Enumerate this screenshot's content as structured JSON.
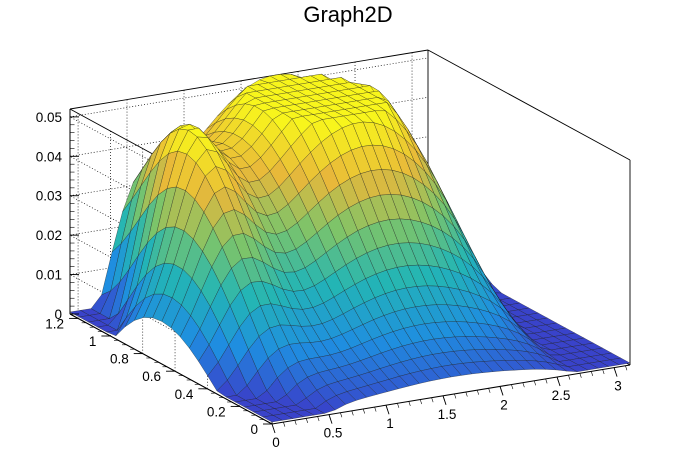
{
  "chart_data": {
    "type": "surface",
    "title": "Graph2D",
    "xlabel": "",
    "ylabel": "",
    "zlabel": "",
    "x_range": [
      0,
      3.14
    ],
    "y_range": [
      0,
      1.25
    ],
    "z_range": [
      0,
      0.052
    ],
    "x_ticks": [
      "0",
      "0.5",
      "1",
      "1.5",
      "2",
      "2.5",
      "3"
    ],
    "y_ticks": [
      "0",
      "0.2",
      "0.4",
      "0.6",
      "0.8",
      "1",
      "1.2"
    ],
    "z_ticks": [
      "0",
      "0.01",
      "0.02",
      "0.03",
      "0.04",
      "0.05"
    ],
    "x_tick_values": [
      0,
      0.5,
      1,
      1.5,
      2,
      2.5,
      3
    ],
    "y_tick_values": [
      0,
      0.2,
      0.4,
      0.6,
      0.8,
      1.0,
      1.2
    ],
    "z_tick_values": [
      0,
      0.01,
      0.02,
      0.03,
      0.04,
      0.05
    ],
    "grid": true,
    "colormap": "parula",
    "colors": [
      "#3a3fc9",
      "#1f8ee0",
      "#23b5b5",
      "#7cc46a",
      "#e8b83a",
      "#f8f51c"
    ],
    "z_peak": 0.051,
    "legend": "none"
  }
}
